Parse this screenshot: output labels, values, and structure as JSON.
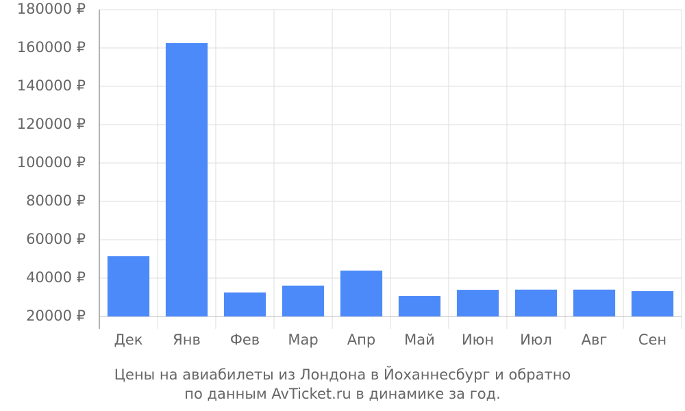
{
  "chart_data": {
    "type": "bar",
    "title": "Цены на авиабилеты из Лондона в Йоханнесбург и обратно",
    "subtitle": "по данным AvTicket.ru в динамике за год.",
    "categories": [
      "Дек",
      "Янв",
      "Фев",
      "Мар",
      "Апр",
      "Май",
      "Июн",
      "Июл",
      "Авг",
      "Сен"
    ],
    "values": [
      51400,
      162500,
      32500,
      36100,
      43900,
      30700,
      33900,
      34000,
      34000,
      33200
    ],
    "color": "#4d8af9",
    "ylim": [
      20000,
      180000
    ],
    "yticks": [
      {
        "value": 20000,
        "label": "20000 ₽"
      },
      {
        "value": 40000,
        "label": "40000 ₽"
      },
      {
        "value": 60000,
        "label": "60000 ₽"
      },
      {
        "value": 80000,
        "label": "80000 ₽"
      },
      {
        "value": 100000,
        "label": "100000 ₽"
      },
      {
        "value": 120000,
        "label": "120000 ₽"
      },
      {
        "value": 140000,
        "label": "140000 ₽"
      },
      {
        "value": 160000,
        "label": "160000 ₽"
      },
      {
        "value": 180000,
        "label": "180000 ₽"
      }
    ],
    "grid": true
  }
}
